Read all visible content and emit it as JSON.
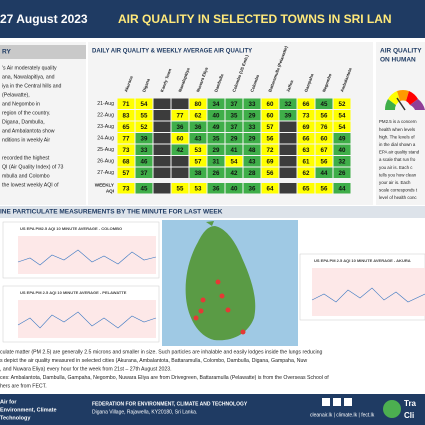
{
  "header": {
    "date": "27 August 2023",
    "title": "AIR QUALITY IN SELECTED TOWNS IN SRI LAN"
  },
  "summary": {
    "heading": "RY",
    "lines": [
      "'s Air moderately quality",
      "ana, Nawalapitiya, and",
      "iya in the Central hills and",
      "(Pelawatte),",
      "and Negombo in",
      "region of the country.",
      "Digana, Dambulla,",
      "and Ambalantota show",
      "nditions in weekly Air",
      "",
      "recorded the highest",
      "QI (Air Quality Index) of 73",
      "mbulla and Colombo",
      "the lowest weekly AQI of"
    ]
  },
  "table": {
    "title": "DAILY AIR QUALITY & WEEKLY AVERAGE AIR QUALITY",
    "columns": [
      "Akurana",
      "Digana",
      "Kandy Town",
      "Nawalapitiya",
      "Nuwara Eliya",
      "Dambulla",
      "Colombo (US Emb.)",
      "Colombo",
      "Battaramulla (Pelawatte)",
      "Jaffna",
      "Gampaha",
      "Negombo",
      "Ambalantota"
    ],
    "scale": [
      {
        "max": 50,
        "color": "#3fae49"
      },
      {
        "max": 100,
        "color": "#ffff00"
      }
    ],
    "rows": [
      {
        "label": "21-Aug",
        "values": [
          71,
          54,
          null,
          null,
          80,
          34,
          37,
          33,
          60,
          32,
          66,
          45,
          52
        ]
      },
      {
        "label": "22-Aug",
        "values": [
          83,
          55,
          null,
          77,
          62,
          40,
          35,
          29,
          60,
          39,
          73,
          56,
          54
        ]
      },
      {
        "label": "23-Aug",
        "values": [
          65,
          52,
          null,
          36,
          36,
          49,
          37,
          33,
          57,
          null,
          69,
          76,
          54
        ]
      },
      {
        "label": "24-Aug",
        "values": [
          77,
          39,
          null,
          60,
          43,
          35,
          29,
          29,
          56,
          null,
          66,
          60,
          49
        ]
      },
      {
        "label": "25-Aug",
        "values": [
          73,
          33,
          null,
          42,
          53,
          29,
          41,
          48,
          72,
          null,
          63,
          67,
          40
        ]
      },
      {
        "label": "26-Aug",
        "values": [
          68,
          46,
          null,
          null,
          57,
          31,
          54,
          43,
          69,
          null,
          61,
          56,
          32
        ]
      },
      {
        "label": "27-Aug",
        "values": [
          57,
          37,
          null,
          null,
          38,
          26,
          42,
          28,
          56,
          null,
          62,
          44,
          26
        ]
      }
    ],
    "weekly": {
      "label": [
        "WEEKLY",
        "AQI"
      ],
      "values": [
        73,
        45,
        null,
        55,
        53,
        36,
        40,
        36,
        64,
        null,
        65,
        56,
        44
      ]
    }
  },
  "health": {
    "heading": [
      "AIR QUALITY",
      "ON HUMAN"
    ],
    "lines": [
      "PM2.5 is a concern",
      "health when levels",
      "high. The levels of",
      "in the dial shown a",
      "EPA air quality stand",
      "a scale that run fro",
      "you air is. Each c",
      "tells you how clean",
      "your air is. Each",
      "scale corresponds t",
      "level of health conc"
    ]
  },
  "minute": {
    "heading": "INE PARTICULATE MEASUREMENTS BY THE MINUTE FOR LAST WEEK",
    "charts": [
      "US EPA PM2.5 AQI 10 MINUTE AVERAGE - COLOMBO",
      "US EPA PM 2.5 AQI 10 MINUTE AVERAGE - PELAWATTE",
      "US EPA PM 2.5 AQI 10 MINUTE AVERAGE - AKURA"
    ]
  },
  "notes": [
    "culate matter (PM 2.5) are generally 2.5 microns and smaller in size. Such particles are inhalable and easily lodges inside the lungs reducing",
    "s depict the air quality measured in selected cities (Akurana, Ambalantota, Battaramulla, Colombo, Dambulla, Digana, Gampaha, Nuw",
    ", and Nuwara Eliya) every hour for the week from 21st – 27th August 2023.",
    "ces: Ambalantota, Dambulla, Gampaha, Negombo, Nuwara Eliya are from Drivegreen, Battaramulla (Pelawatte) is from the Overseas School of",
    "hers are from FECT."
  ],
  "footer": {
    "left": [
      "Air for",
      "Environment, Climate",
      "Technology"
    ],
    "org": "FEDERATION FOR ENVIRONMENT, CLIMATE AND TECHNOLOGY",
    "address": "Digana Village, Rajawella, KY20180, Sri Lanka.",
    "web": "cleanair.lk | climate.lk | fect.lk",
    "right": [
      "Tra",
      "Cli"
    ]
  }
}
